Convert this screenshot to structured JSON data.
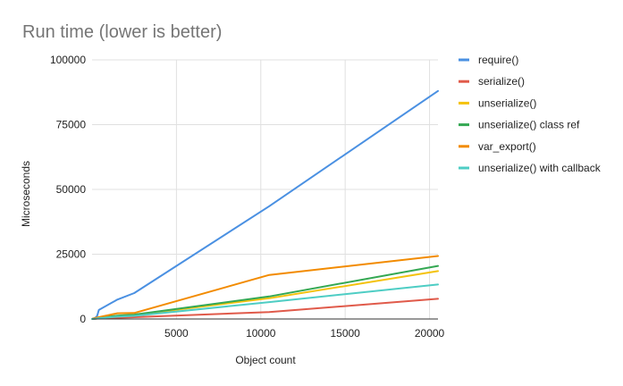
{
  "chart_data": {
    "type": "line",
    "title": "Run time (lower is better)",
    "xlabel": "Object count",
    "ylabel": "Microseconds",
    "xlim": [
      0,
      20500
    ],
    "ylim": [
      0,
      100000
    ],
    "x_ticks": [
      5000,
      10000,
      15000,
      20000
    ],
    "x_tick_labels": [
      "5000",
      "10000",
      "15000",
      "20000"
    ],
    "y_ticks": [
      0,
      25000,
      50000,
      75000,
      100000
    ],
    "y_tick_labels": [
      "0",
      "25000",
      "50000",
      "75000",
      "100000"
    ],
    "grid": "vertical and horizontal gridlines",
    "legend_position": "right",
    "series": [
      {
        "name": "require()",
        "color": "#4a90e2",
        "points": [
          [
            0,
            0
          ],
          [
            200,
            500
          ],
          [
            300,
            1200
          ],
          [
            400,
            3500
          ],
          [
            1500,
            7500
          ],
          [
            2500,
            10000
          ],
          [
            10500,
            43500
          ],
          [
            20500,
            88000
          ]
        ]
      },
      {
        "name": "serialize()",
        "color": "#e05a4a",
        "points": [
          [
            0,
            0
          ],
          [
            200,
            100
          ],
          [
            400,
            200
          ],
          [
            1500,
            500
          ],
          [
            2500,
            700
          ],
          [
            10500,
            2700
          ],
          [
            20500,
            7800
          ]
        ]
      },
      {
        "name": "unserialize()",
        "color": "#f4c20d",
        "points": [
          [
            0,
            0
          ],
          [
            200,
            200
          ],
          [
            400,
            400
          ],
          [
            1500,
            1200
          ],
          [
            2500,
            1500
          ],
          [
            10500,
            8000
          ],
          [
            20500,
            18500
          ]
        ]
      },
      {
        "name": "unserialize() class ref",
        "color": "#34a853",
        "points": [
          [
            0,
            0
          ],
          [
            200,
            200
          ],
          [
            400,
            400
          ],
          [
            1500,
            1300
          ],
          [
            2500,
            1700
          ],
          [
            10500,
            8700
          ],
          [
            20500,
            20500
          ]
        ]
      },
      {
        "name": "var_export()",
        "color": "#f28b00",
        "points": [
          [
            0,
            0
          ],
          [
            200,
            400
          ],
          [
            400,
            700
          ],
          [
            1500,
            2200
          ],
          [
            2500,
            2300
          ],
          [
            10500,
            17000
          ],
          [
            20500,
            24300
          ]
        ]
      },
      {
        "name": "unserialize() with callback",
        "color": "#4ecdc4",
        "points": [
          [
            0,
            0
          ],
          [
            200,
            100
          ],
          [
            400,
            300
          ],
          [
            1500,
            900
          ],
          [
            2500,
            1200
          ],
          [
            10500,
            6500
          ],
          [
            20500,
            13300
          ]
        ]
      }
    ]
  }
}
